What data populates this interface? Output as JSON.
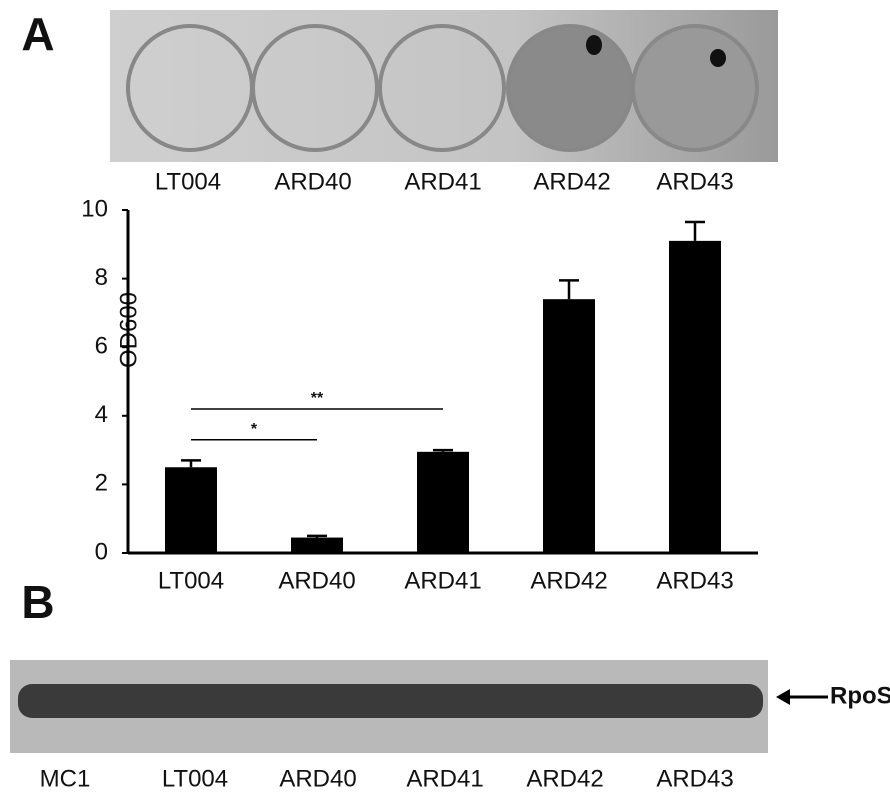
{
  "panel_a": {
    "label": "A",
    "well_labels": [
      "LT004",
      "ARD40",
      "ARD41",
      "ARD42",
      "ARD43"
    ]
  },
  "chart_data": {
    "type": "bar",
    "y_label": "OD600",
    "categories": [
      "LT004",
      "ARD40",
      "ARD41",
      "ARD42",
      "ARD43"
    ],
    "values": [
      2.5,
      0.45,
      2.95,
      7.4,
      9.1
    ],
    "errors": [
      0.2,
      0.05,
      0.05,
      0.55,
      0.55
    ],
    "color": "#000000",
    "ylim": [
      0,
      10
    ],
    "yticks": [
      0,
      2,
      4,
      6,
      8,
      10
    ],
    "grid": false,
    "significance": [
      {
        "label": "**",
        "between": [
          "LT004",
          "ARD41"
        ],
        "y": 4.2
      },
      {
        "label": "*",
        "between": [
          "LT004",
          "ARD40"
        ],
        "y": 3.3
      }
    ]
  },
  "panel_b": {
    "label": "B",
    "lane_labels": [
      "MC1",
      "LT004",
      "ARD40",
      "ARD41",
      "ARD42",
      "ARD43"
    ],
    "band_label": "RpoS"
  }
}
